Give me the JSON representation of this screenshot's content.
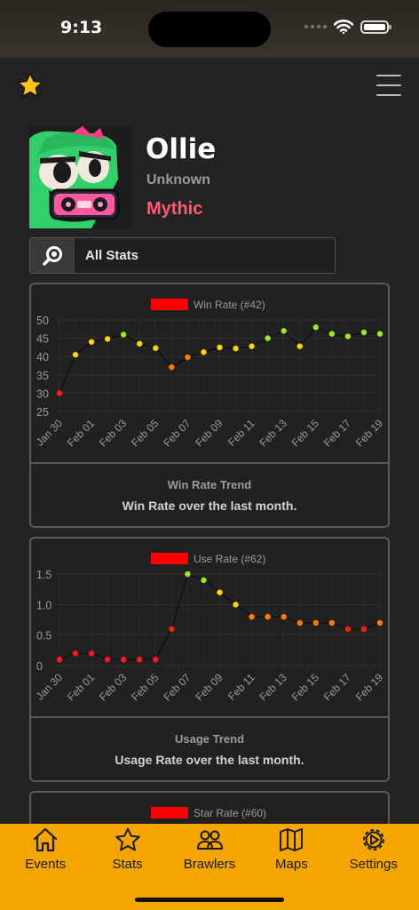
{
  "status_bar": {
    "time": "9:13"
  },
  "profile": {
    "name": "Ollie",
    "subtitle": "Unknown",
    "rarity": "Mythic",
    "rarity_color": "#ff5a6e"
  },
  "stat_selector": {
    "label": "All Stats",
    "icon": "search-icon"
  },
  "charts": [
    {
      "legend": "Win Rate (#42)",
      "title": "Win Rate Trend",
      "subtitle": "Win Rate over the last month."
    },
    {
      "legend": "Use Rate (#62)",
      "title": "Usage Trend",
      "subtitle": "Usage Rate over the last month."
    },
    {
      "legend": "Star Rate (#60)"
    }
  ],
  "chart_data": [
    {
      "type": "scatter",
      "legend": "Win Rate (#42)",
      "x": [
        "Jan 30",
        "Jan 31",
        "Feb 01",
        "Feb 02",
        "Feb 03",
        "Feb 04",
        "Feb 05",
        "Feb 06",
        "Feb 07",
        "Feb 08",
        "Feb 09",
        "Feb 10",
        "Feb 11",
        "Feb 12",
        "Feb 13",
        "Feb 14",
        "Feb 15",
        "Feb 16",
        "Feb 17",
        "Feb 18",
        "Feb 19"
      ],
      "x_tick_labels": [
        "Jan 30",
        "Feb 01",
        "Feb 03",
        "Feb 05",
        "Feb 07",
        "Feb 09",
        "Feb 11",
        "Feb 13",
        "Feb 15",
        "Feb 17",
        "Feb 19"
      ],
      "values": [
        30,
        40.5,
        44,
        44.8,
        46,
        43.5,
        42.3,
        37.1,
        39.8,
        41.2,
        42.5,
        42.2,
        42.8,
        45,
        47,
        42.8,
        48,
        46.2,
        45.5,
        46.6,
        46.2
      ],
      "ylim": [
        25,
        50
      ],
      "yticks": [
        25,
        30,
        35,
        40,
        45,
        50
      ],
      "grid": true
    },
    {
      "type": "scatter",
      "legend": "Use Rate (#62)",
      "x": [
        "Jan 30",
        "Jan 31",
        "Feb 01",
        "Feb 02",
        "Feb 03",
        "Feb 04",
        "Feb 05",
        "Feb 06",
        "Feb 07",
        "Feb 08",
        "Feb 09",
        "Feb 10",
        "Feb 11",
        "Feb 12",
        "Feb 13",
        "Feb 14",
        "Feb 15",
        "Feb 16",
        "Feb 17",
        "Feb 18",
        "Feb 19"
      ],
      "x_tick_labels": [
        "Jan 30",
        "Feb 01",
        "Feb 03",
        "Feb 05",
        "Feb 07",
        "Feb 09",
        "Feb 11",
        "Feb 13",
        "Feb 15",
        "Feb 17",
        "Feb 19"
      ],
      "values": [
        0.1,
        0.2,
        0.2,
        0.1,
        0.1,
        0.1,
        0.1,
        0.6,
        1.5,
        1.4,
        1.2,
        1.0,
        0.8,
        0.8,
        0.8,
        0.7,
        0.7,
        0.7,
        0.6,
        0.6,
        0.7
      ],
      "ylim": [
        0,
        1.5
      ],
      "yticks": [
        0,
        0.5,
        1.0,
        1.5
      ],
      "ytick_labels": [
        "0",
        "0.5",
        "1.0",
        "1.5"
      ],
      "grid": true
    }
  ],
  "colors": {
    "low": "#ff1a1a",
    "mid": "#ff7a00",
    "good": "#ffd400",
    "high": "#9fe81c",
    "legend": "#ff0000"
  },
  "tabs": [
    {
      "label": "Events",
      "icon": "house-icon"
    },
    {
      "label": "Stats",
      "icon": "star-icon"
    },
    {
      "label": "Brawlers",
      "icon": "people-icon"
    },
    {
      "label": "Maps",
      "icon": "map-icon"
    },
    {
      "label": "Settings",
      "icon": "gear-icon"
    }
  ]
}
